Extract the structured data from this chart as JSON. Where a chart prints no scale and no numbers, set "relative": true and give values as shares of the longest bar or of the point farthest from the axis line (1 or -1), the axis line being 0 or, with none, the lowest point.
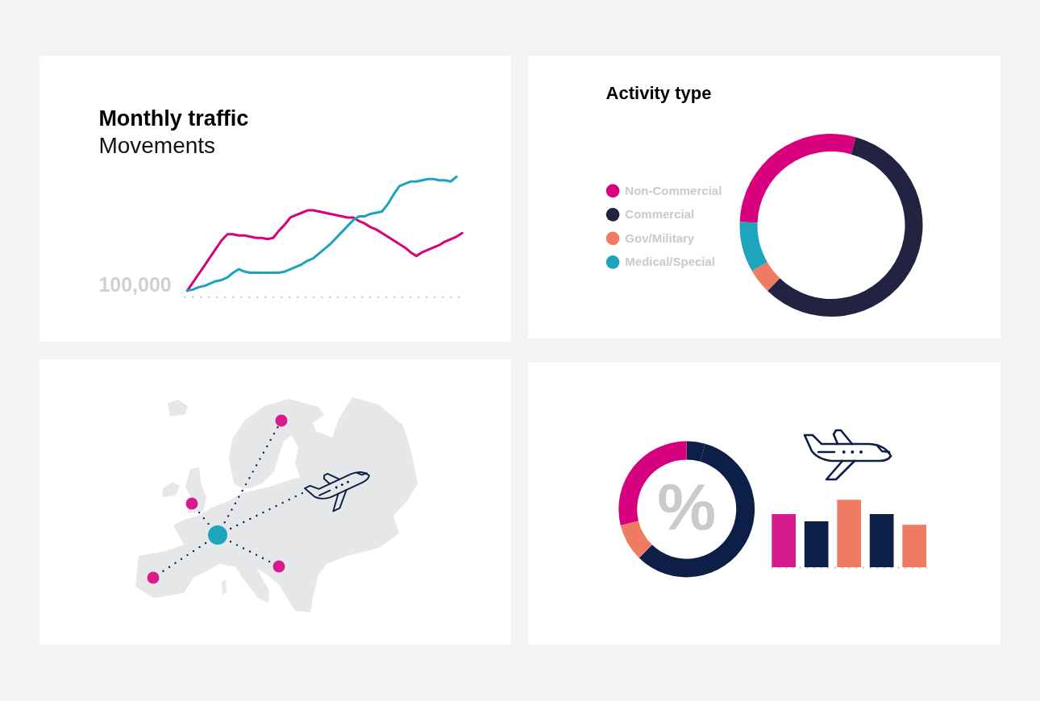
{
  "chart_data": [
    {
      "type": "line",
      "title": "Monthly traffic",
      "subtitle": "Movements",
      "relative": true,
      "categories": [
        null,
        null,
        null,
        null,
        null,
        null,
        null,
        null,
        null,
        null,
        null,
        null,
        null,
        null,
        null,
        null,
        null,
        null,
        null,
        null,
        null,
        null,
        null,
        null,
        null,
        null,
        null,
        null,
        null,
        null,
        null,
        null,
        null,
        null,
        null,
        null,
        null,
        null,
        null,
        null,
        null,
        null,
        null,
        null,
        null,
        null,
        null,
        null,
        null
      ],
      "series": [
        {
          "color": "#d9007e",
          "values": [
            0.05,
            0.12,
            0.19,
            0.26,
            0.33,
            0.4,
            0.47,
            0.52,
            0.52,
            0.51,
            0.51,
            0.5,
            0.49,
            0.49,
            0.48,
            0.49,
            0.55,
            0.6,
            0.66,
            0.68,
            0.7,
            0.72,
            0.72,
            0.71,
            0.7,
            0.69,
            0.68,
            0.67,
            0.66,
            0.66,
            0.63,
            0.61,
            0.58,
            0.56,
            0.53,
            0.5,
            0.47,
            0.44,
            0.41,
            0.37,
            0.34,
            0.37,
            0.39,
            0.41,
            0.43,
            0.46,
            0.48,
            0.5,
            0.53
          ]
        },
        {
          "color": "#1ba3bd",
          "values": [
            0.05,
            0.06,
            0.08,
            0.09,
            0.11,
            0.13,
            0.14,
            0.16,
            0.2,
            0.23,
            0.21,
            0.2,
            0.2,
            0.2,
            0.2,
            0.2,
            0.2,
            0.21,
            0.23,
            0.25,
            0.27,
            0.3,
            0.32,
            0.36,
            0.4,
            0.44,
            0.49,
            0.54,
            0.59,
            0.64,
            0.67,
            0.67,
            0.69,
            0.7,
            0.71,
            0.77,
            0.85,
            0.92,
            0.94,
            0.96,
            0.96,
            0.97,
            0.98,
            0.98,
            0.97,
            0.97,
            0.96,
            1.0,
            null
          ]
        }
      ],
      "annotations": [
        "100,000"
      ]
    },
    {
      "type": "donut",
      "title": "Activity type",
      "categories": [
        "Non-Commercial",
        "Commercial",
        "Gov/Military",
        "Medical/Special"
      ],
      "values": [
        28.8,
        57.9,
        4.4,
        8.9
      ],
      "colors": [
        "#d9007e",
        "#232240",
        "#f07b64",
        "#1ea4bc"
      ],
      "legend": "left"
    },
    {
      "type": "donut",
      "categories": [
        null,
        null,
        null,
        null
      ],
      "values": [
        4.4,
        57.9,
        8.9,
        28.8
      ],
      "colors": [
        "#0d1f47",
        "#0d1f47",
        "#f07b63",
        "#d6007f"
      ],
      "annotations": [
        "%"
      ]
    },
    {
      "type": "bar",
      "relative": true,
      "categories": [
        null,
        null,
        null,
        null,
        null
      ],
      "values": [
        0.79,
        0.68,
        1,
        0.79,
        0.63
      ],
      "colors": [
        "#d41a8c",
        "#0d1f47",
        "#f07b63",
        "#0d1f47",
        "#f07b63"
      ]
    }
  ]
}
